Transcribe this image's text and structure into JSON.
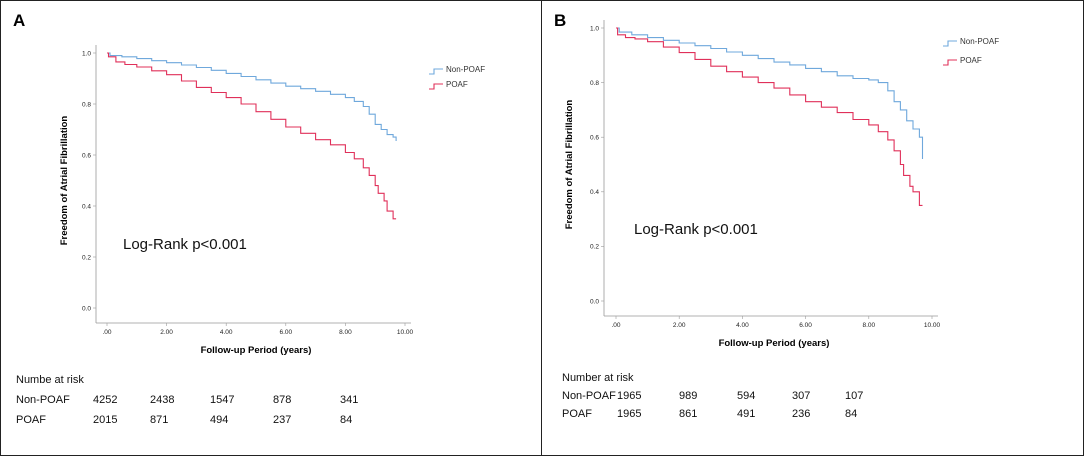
{
  "chart_data": [
    {
      "panel": "A",
      "type": "line",
      "title": "",
      "xlabel": "Follow-up Period (years)",
      "ylabel": "Freedom of Atrial Fibrillation",
      "xlim": [
        0,
        10
      ],
      "ylim": [
        0,
        1.0
      ],
      "x_ticks": [
        ".00",
        "2.00",
        "4.00",
        "6.00",
        "8.00",
        "10.00"
      ],
      "y_ticks": [
        "0.0",
        "0.2",
        "0.4",
        "0.6",
        "0.8",
        "1.0"
      ],
      "annotation": "Log-Rank p<0.001",
      "legend_position": "top-right",
      "series": [
        {
          "name": "Non-POAF",
          "color": "#6fa8dc",
          "x": [
            0,
            0.1,
            0.5,
            1,
            1.5,
            2,
            2.5,
            3,
            3.5,
            4,
            4.5,
            5,
            5.5,
            6,
            6.5,
            7,
            7.5,
            8,
            8.3,
            8.6,
            8.8,
            9.0,
            9.2,
            9.4,
            9.6,
            9.7
          ],
          "values": [
            1.0,
            0.99,
            0.985,
            0.978,
            0.97,
            0.962,
            0.953,
            0.943,
            0.932,
            0.92,
            0.908,
            0.895,
            0.882,
            0.87,
            0.86,
            0.85,
            0.838,
            0.825,
            0.81,
            0.79,
            0.76,
            0.72,
            0.7,
            0.68,
            0.67,
            0.655
          ]
        },
        {
          "name": "POAF",
          "color": "#e0305a",
          "x": [
            0,
            0.05,
            0.3,
            0.6,
            1,
            1.5,
            2,
            2.5,
            3,
            3.5,
            4,
            4.5,
            5,
            5.5,
            6,
            6.5,
            7,
            7.5,
            8,
            8.3,
            8.6,
            8.8,
            9.0,
            9.1,
            9.3,
            9.4,
            9.6,
            9.7
          ],
          "values": [
            1.0,
            0.985,
            0.965,
            0.955,
            0.945,
            0.93,
            0.915,
            0.89,
            0.865,
            0.845,
            0.825,
            0.8,
            0.77,
            0.74,
            0.71,
            0.685,
            0.66,
            0.64,
            0.61,
            0.585,
            0.55,
            0.52,
            0.48,
            0.45,
            0.42,
            0.38,
            0.35,
            0.35
          ]
        }
      ],
      "risk_table": {
        "header": "Numbe at risk",
        "rows": [
          {
            "label": "Non-POAF",
            "values": [
              "4252",
              "2438",
              "1547",
              "878",
              "341"
            ]
          },
          {
            "label": "POAF",
            "values": [
              "2015",
              "871",
              "494",
              "237",
              "84"
            ]
          }
        ]
      }
    },
    {
      "panel": "B",
      "type": "line",
      "title": "",
      "xlabel": "Follow-up Period (years)",
      "ylabel": "Freedom of Atrial Fibrillation",
      "xlim": [
        0,
        10
      ],
      "ylim": [
        0,
        1.0
      ],
      "x_ticks": [
        ".00",
        "2.00",
        "4.00",
        "6.00",
        "8.00",
        "10.00"
      ],
      "y_ticks": [
        "0.0",
        "0.2",
        "0.4",
        "0.6",
        "0.8",
        "1.0"
      ],
      "annotation": "Log-Rank p<0.001",
      "legend_position": "top-right",
      "series": [
        {
          "name": "Non-POAF",
          "color": "#6fa8dc",
          "x": [
            0,
            0.1,
            0.5,
            1,
            1.5,
            2,
            2.5,
            3,
            3.5,
            4,
            4.5,
            5,
            5.5,
            6,
            6.5,
            7,
            7.5,
            8,
            8.3,
            8.6,
            8.8,
            9.0,
            9.2,
            9.4,
            9.6,
            9.7
          ],
          "values": [
            1.0,
            0.985,
            0.975,
            0.965,
            0.955,
            0.945,
            0.935,
            0.925,
            0.912,
            0.9,
            0.888,
            0.875,
            0.865,
            0.852,
            0.84,
            0.825,
            0.815,
            0.81,
            0.8,
            0.77,
            0.73,
            0.7,
            0.66,
            0.63,
            0.6,
            0.52
          ]
        },
        {
          "name": "POAF",
          "color": "#e0305a",
          "x": [
            0,
            0.05,
            0.3,
            0.6,
            1,
            1.5,
            2,
            2.5,
            3,
            3.5,
            4,
            4.5,
            5,
            5.5,
            6,
            6.5,
            7,
            7.5,
            8,
            8.3,
            8.6,
            8.8,
            9.0,
            9.1,
            9.3,
            9.4,
            9.6,
            9.7
          ],
          "values": [
            1.0,
            0.975,
            0.965,
            0.96,
            0.95,
            0.93,
            0.91,
            0.885,
            0.86,
            0.84,
            0.82,
            0.8,
            0.78,
            0.755,
            0.73,
            0.71,
            0.69,
            0.665,
            0.645,
            0.62,
            0.59,
            0.55,
            0.5,
            0.46,
            0.42,
            0.4,
            0.35,
            0.35
          ]
        }
      ],
      "risk_table": {
        "header": "Number at risk",
        "rows": [
          {
            "label": "Non-POAF",
            "values": [
              "1965",
              "989",
              "594",
              "307",
              "107"
            ]
          },
          {
            "label": "POAF",
            "values": [
              "1965",
              "861",
              "491",
              "236",
              "84"
            ]
          }
        ]
      }
    }
  ]
}
